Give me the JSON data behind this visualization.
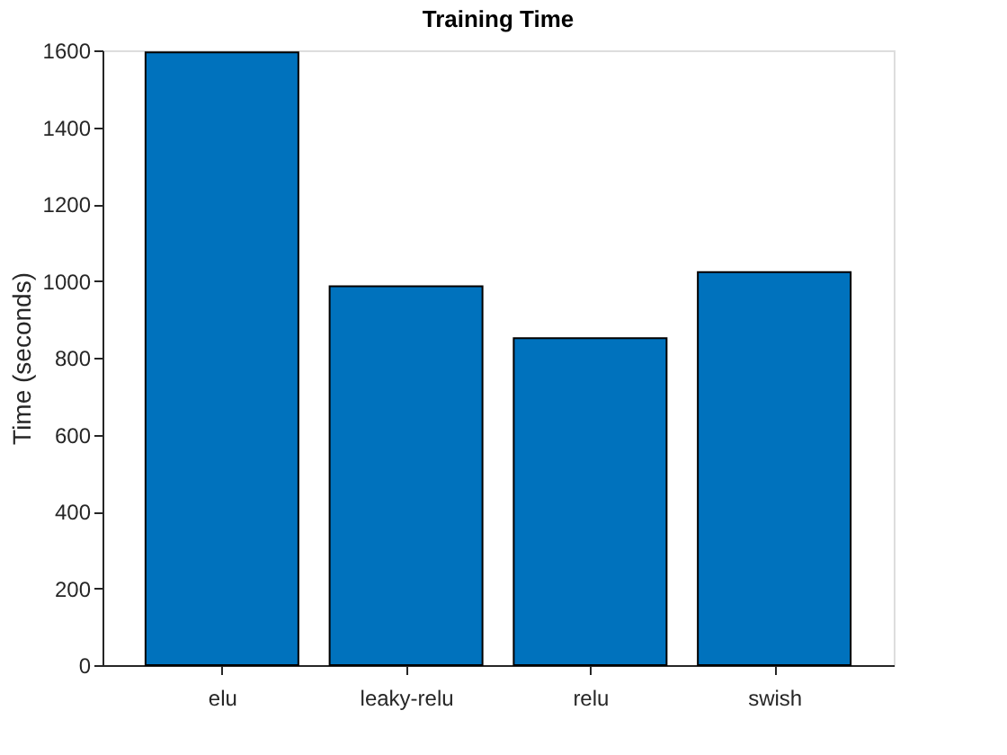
{
  "chart_data": {
    "type": "bar",
    "title": "Training Time",
    "ylabel": "Time (seconds)",
    "categories": [
      "elu",
      "leaky-relu",
      "relu",
      "swish"
    ],
    "values": [
      1595,
      986,
      851,
      1023
    ],
    "color": "#0072bd",
    "ylim": [
      0,
      1600
    ],
    "yticks": [
      0,
      200,
      400,
      600,
      800,
      1000,
      1200,
      1400,
      1600
    ],
    "grid": false
  }
}
